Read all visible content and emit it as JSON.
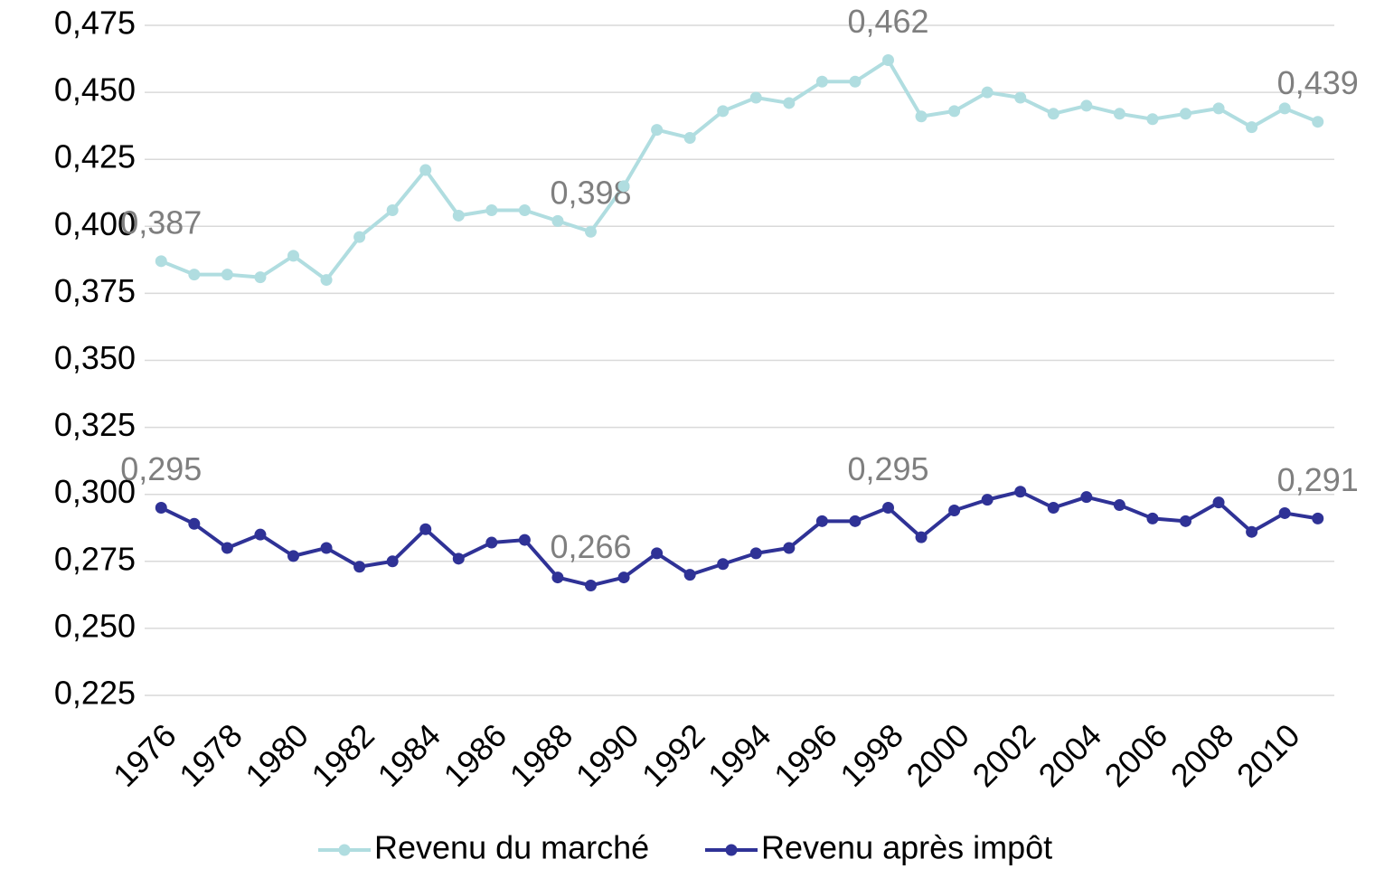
{
  "chart_data": {
    "type": "line",
    "categories": [
      "1976",
      null,
      "1978",
      null,
      "1980",
      null,
      "1982",
      null,
      "1984",
      null,
      "1986",
      null,
      "1988",
      null,
      "1990",
      null,
      "1992",
      null,
      "1994",
      null,
      "1996",
      null,
      "1998",
      null,
      "2000",
      null,
      "2002",
      null,
      "2004",
      null,
      "2006",
      null,
      "2008",
      null,
      "2010",
      null
    ],
    "series": [
      {
        "name": "Revenu du marché",
        "color": "#b0dde0",
        "values": [
          0.387,
          0.382,
          0.382,
          0.381,
          0.389,
          0.38,
          0.396,
          0.406,
          0.421,
          0.404,
          0.406,
          0.406,
          0.402,
          0.398,
          0.415,
          0.436,
          0.433,
          0.443,
          0.448,
          0.446,
          0.454,
          0.454,
          0.462,
          0.441,
          0.443,
          0.45,
          0.448,
          0.442,
          0.445,
          0.442,
          0.44,
          0.442,
          0.444,
          0.437,
          0.444,
          0.439
        ],
        "value_labels": [
          "0,387",
          null,
          null,
          null,
          null,
          null,
          null,
          null,
          null,
          null,
          null,
          null,
          null,
          "0,398",
          null,
          null,
          null,
          null,
          null,
          null,
          null,
          null,
          "0,462",
          null,
          null,
          null,
          null,
          null,
          null,
          null,
          null,
          null,
          null,
          null,
          null,
          "0,439"
        ]
      },
      {
        "name": "Revenu après impôt",
        "color": "#2f3296",
        "values": [
          0.295,
          0.289,
          0.28,
          0.285,
          0.277,
          0.28,
          0.273,
          0.275,
          0.287,
          0.276,
          0.282,
          0.283,
          0.269,
          0.266,
          0.269,
          0.278,
          0.27,
          0.274,
          0.278,
          0.28,
          0.29,
          0.29,
          0.295,
          0.284,
          0.294,
          0.298,
          0.301,
          0.295,
          0.299,
          0.296,
          0.291,
          0.29,
          0.297,
          0.286,
          0.293,
          0.291
        ],
        "value_labels": [
          "0,295",
          null,
          null,
          null,
          null,
          null,
          null,
          null,
          null,
          null,
          null,
          null,
          null,
          "0,266",
          null,
          null,
          null,
          null,
          null,
          null,
          null,
          null,
          "0,295",
          null,
          null,
          null,
          null,
          null,
          null,
          null,
          null,
          null,
          null,
          null,
          null,
          "0,291"
        ]
      }
    ],
    "ylim": [
      0.225,
      0.475
    ],
    "yticks": [
      {
        "value": 0.225,
        "label": "0,225"
      },
      {
        "value": 0.25,
        "label": "0,250"
      },
      {
        "value": 0.275,
        "label": "0,275"
      },
      {
        "value": 0.3,
        "label": "0,300"
      },
      {
        "value": 0.325,
        "label": "0,325"
      },
      {
        "value": 0.35,
        "label": "0,350"
      },
      {
        "value": 0.375,
        "label": "0,375"
      },
      {
        "value": 0.4,
        "label": "0,400"
      },
      {
        "value": 0.425,
        "label": "0,425"
      },
      {
        "value": 0.45,
        "label": "0,450"
      },
      {
        "value": 0.475,
        "label": "0,475"
      }
    ],
    "grid": true,
    "legend": "bottom"
  }
}
